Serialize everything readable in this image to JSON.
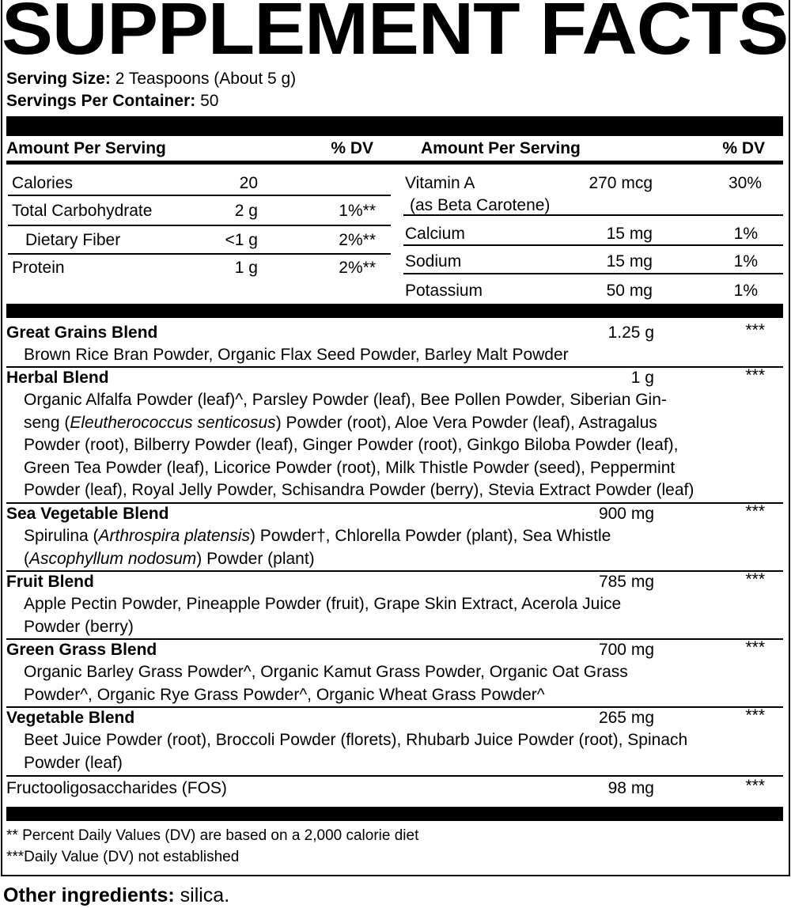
{
  "title": "SUPPLEMENT FACTS",
  "serving": {
    "size_label": "Serving Size:",
    "size_value": "2 Teaspoons (About 5 g)",
    "per_container_label": "Servings Per Container:",
    "per_container_value": "50"
  },
  "headers": {
    "amount": "Amount Per Serving",
    "dv": "% DV"
  },
  "left_nutrients": [
    {
      "name": "Calories",
      "amount": "20",
      "dv": ""
    },
    {
      "name": "Total Carbohydrate",
      "amount": "2 g",
      "dv": "1%**"
    },
    {
      "name": "Dietary Fiber",
      "amount": "<1 g",
      "dv": "2%**"
    },
    {
      "name": "Protein",
      "amount": "1 g",
      "dv": "2%**"
    }
  ],
  "right_nutrients": [
    {
      "name": "Vitamin A",
      "sub": "(as Beta Carotene)",
      "amount": "270 mcg",
      "dv": "30%"
    },
    {
      "name": "Calcium",
      "amount": "15 mg",
      "dv": "1%"
    },
    {
      "name": "Sodium",
      "amount": "15 mg",
      "dv": "1%"
    },
    {
      "name": "Potassium",
      "amount": "50 mg",
      "dv": "1%"
    }
  ],
  "blends": [
    {
      "name": "Great Grains Blend",
      "amount": "1.25 g",
      "dv": "***",
      "lines": [
        "Brown Rice Bran Powder, Organic Flax Seed Powder, Barley Malt Powder"
      ]
    },
    {
      "name": "Herbal Blend",
      "amount": "1 g",
      "dv": "***",
      "lines": [
        "Organic Alfalfa Powder (leaf)^, Parsley Powder (leaf), Bee Pollen Powder, Siberian Gin-",
        "seng (",
        "Eleutherococcus senticosus",
        ") Powder (root), Aloe Vera Powder (leaf), Astragalus",
        "Powder (root), Bilberry Powder (leaf), Ginger Powder (root), Ginkgo Biloba Powder (leaf),",
        "Green Tea Powder (leaf), Licorice Powder (root), Milk Thistle Powder (seed), Peppermint",
        "Powder (leaf), Royal Jelly Powder, Schisandra Powder (berry), Stevia Extract Powder (leaf)"
      ]
    },
    {
      "name": "Sea Vegetable Blend",
      "amount": "900 mg",
      "dv": "***",
      "lines": [
        "Spirulina (",
        "Arthrospira platensis",
        ") Powder†, Chlorella Powder (plant), Sea Whistle",
        "(",
        "Ascophyllum nodosum",
        ") Powder (plant)"
      ]
    },
    {
      "name": "Fruit Blend",
      "amount": "785 mg",
      "dv": "***",
      "lines": [
        "Apple Pectin Powder, Pineapple Powder (fruit), Grape Skin Extract, Acerola Juice",
        "Powder (berry)"
      ]
    },
    {
      "name": "Green Grass Blend",
      "amount": "700 mg",
      "dv": "***",
      "lines": [
        "Organic Barley Grass Powder^, Organic Kamut Grass Powder, Organic Oat Grass",
        "Powder^, Organic Rye Grass Powder^, Organic Wheat Grass Powder^"
      ]
    },
    {
      "name": "Vegetable Blend",
      "amount": "265 mg",
      "dv": "***",
      "lines": [
        "Beet Juice Powder (root), Broccoli Powder (florets), Rhubarb Juice Powder (root), Spinach",
        "Powder (leaf)"
      ]
    },
    {
      "name": "Fructooligosaccharides (FOS)",
      "amount": "98 mg",
      "dv": "***",
      "lines": []
    }
  ],
  "footnotes": [
    "** Percent Daily Values (DV) are based on a 2,000 calorie diet",
    "***Daily Value (DV) not established"
  ],
  "other": {
    "label": "Other ingredients:",
    "value": "silica."
  }
}
